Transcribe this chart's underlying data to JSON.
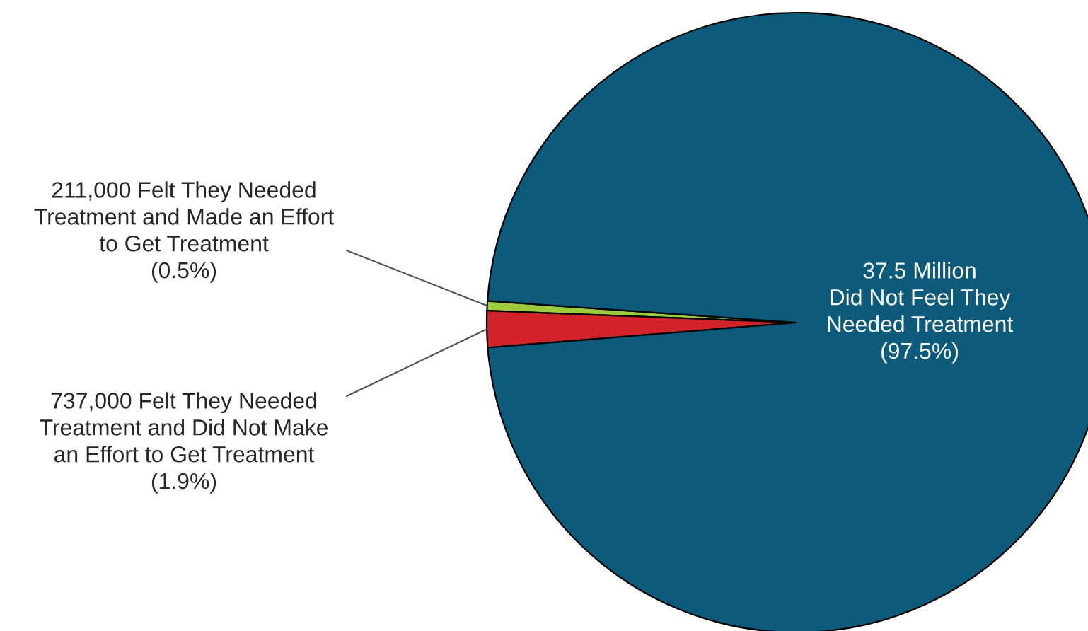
{
  "chart_data": {
    "type": "pie",
    "categories": [
      "211,000 Felt They Needed\nTreatment and Made an Effort\nto Get Treatment\n(0.5%)",
      "737,000 Felt They Needed\nTreatment and Did Not Make\nan Effort to Get Treatment\n(1.9%)",
      "37.5 Million\nDid Not Feel They\nNeeded Treatment\n(97.5%)"
    ],
    "values": [
      0.5,
      1.9,
      97.5
    ],
    "colors": [
      "#9ccb3b",
      "#d2232a",
      "#0e5a7b"
    ]
  }
}
